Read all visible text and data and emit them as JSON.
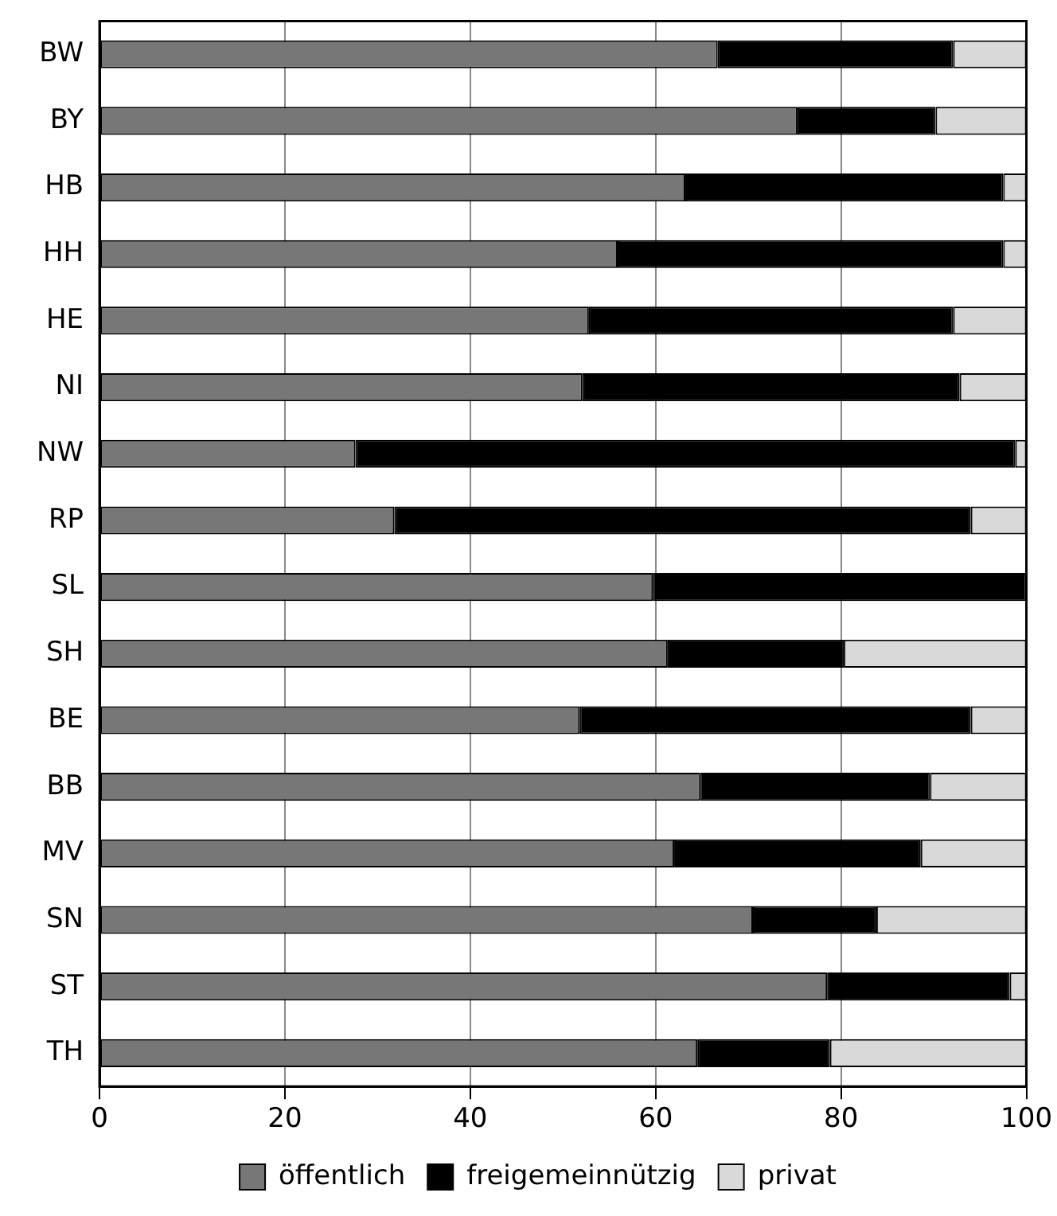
{
  "chart_data": {
    "type": "bar",
    "orientation": "horizontal",
    "stacked": true,
    "categories": [
      "BW",
      "BY",
      "HB",
      "HH",
      "HE",
      "NI",
      "NW",
      "RP",
      "SL",
      "SH",
      "BE",
      "BB",
      "MV",
      "SN",
      "ST",
      "TH"
    ],
    "series": [
      {
        "name": "öffentlich",
        "color": "#777777",
        "values": [
          66.7,
          75.3,
          63.2,
          55.9,
          52.8,
          52.1,
          27.6,
          31.8,
          59.7,
          61.3,
          51.8,
          64.8,
          62.0,
          70.5,
          78.5,
          64.5
        ]
      },
      {
        "name": "freigemeinnützig",
        "color": "#000000",
        "values": [
          25.4,
          14.9,
          34.3,
          41.6,
          39.3,
          40.7,
          71.2,
          62.2,
          40.3,
          19.0,
          42.2,
          24.8,
          26.6,
          13.3,
          19.7,
          14.3
        ]
      },
      {
        "name": "privat",
        "color": "#d9d9d9",
        "values": [
          7.9,
          9.8,
          2.5,
          2.5,
          7.9,
          7.2,
          1.2,
          6.0,
          0,
          19.7,
          6.0,
          10.4,
          11.4,
          16.2,
          1.8,
          21.2
        ]
      }
    ],
    "xlim": [
      0,
      100
    ],
    "xticks": [
      0,
      20,
      40,
      60,
      80,
      100
    ],
    "grid": "x",
    "legend": "bottom"
  }
}
